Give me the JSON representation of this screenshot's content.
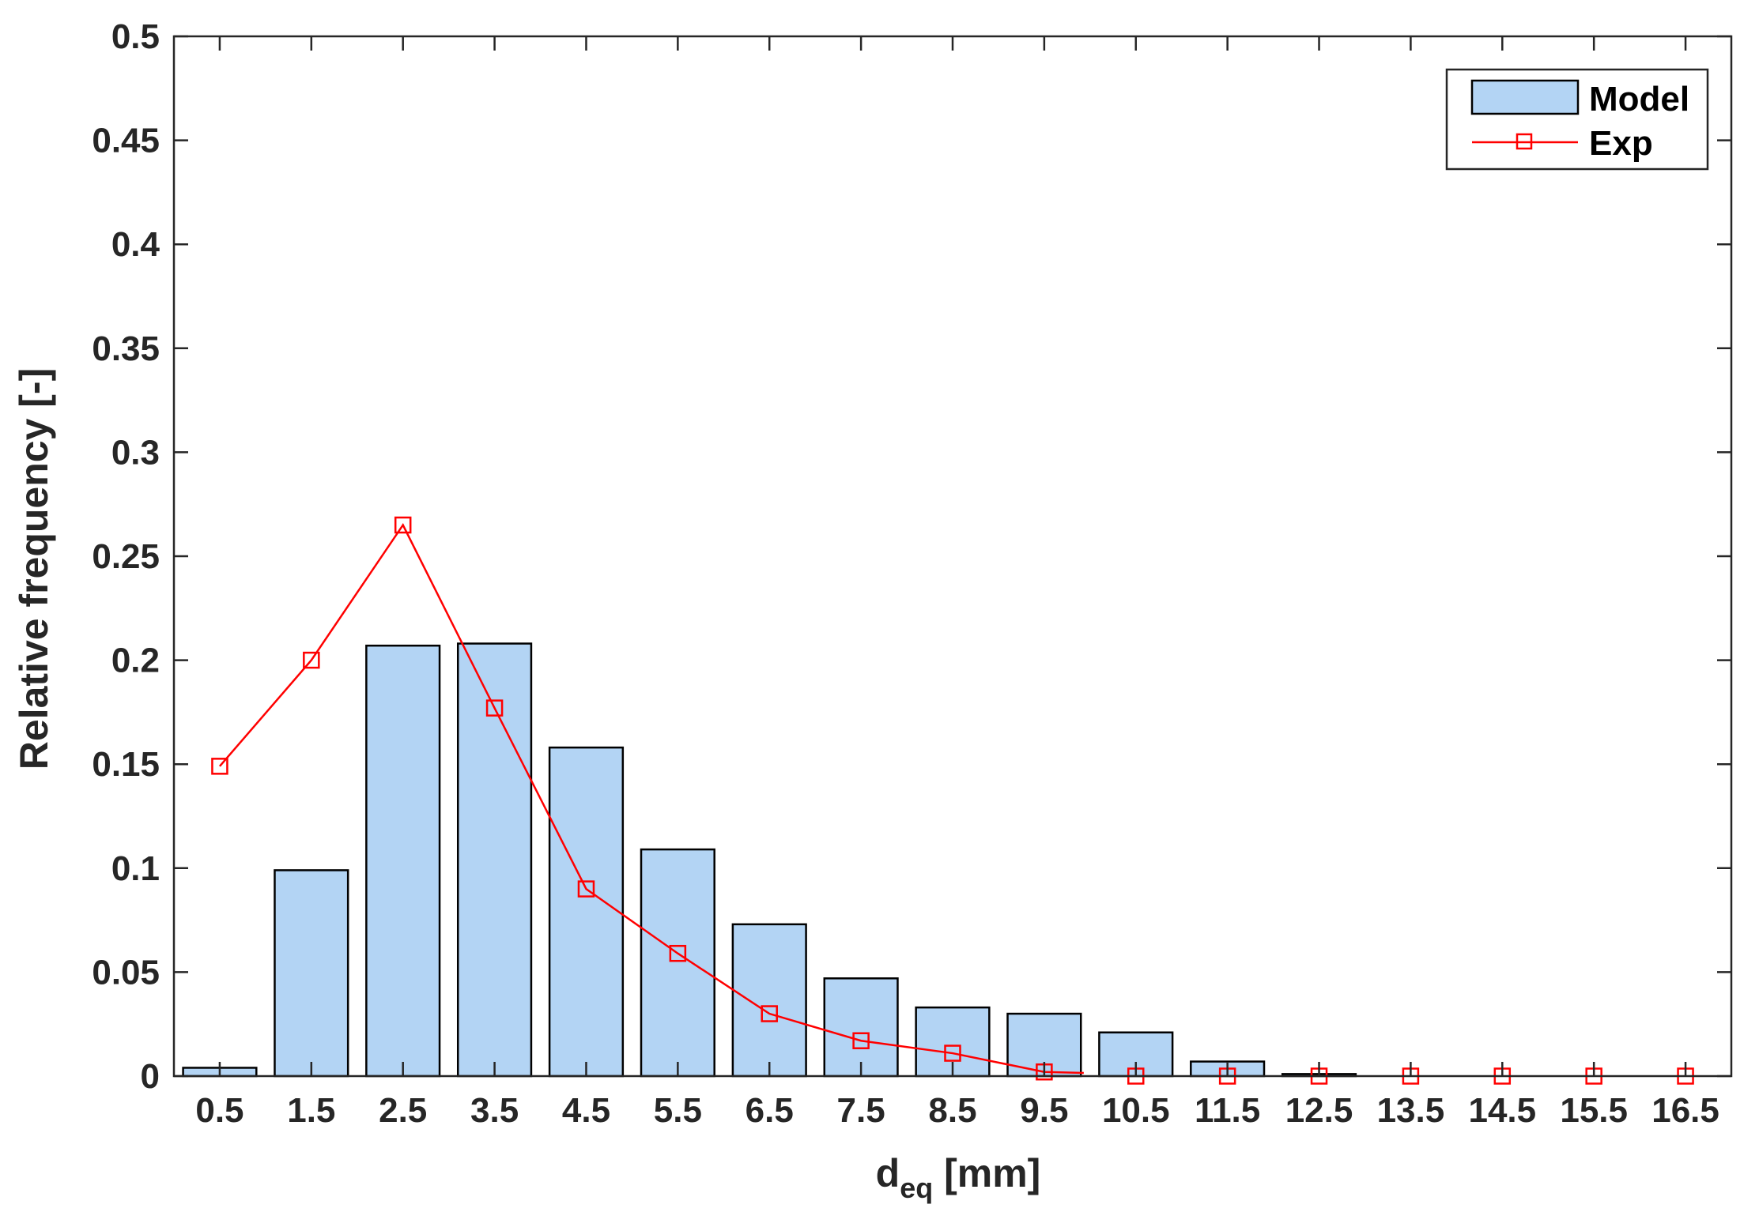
{
  "chart_data": {
    "type": "bar",
    "title": "",
    "xlabel": "d",
    "xlabel_sub": "eq",
    "xlabel_unit": " [mm]",
    "ylabel": "Relative frequency [-]",
    "ylim": [
      0,
      0.5
    ],
    "yticks": [
      "0",
      "0.05",
      "0.1",
      "0.15",
      "0.2",
      "0.25",
      "0.3",
      "0.35",
      "0.4",
      "0.45",
      "0.5"
    ],
    "categories": [
      "0.5",
      "1.5",
      "2.5",
      "3.5",
      "4.5",
      "5.5",
      "6.5",
      "7.5",
      "8.5",
      "9.5",
      "10.5",
      "11.5",
      "12.5",
      "13.5",
      "14.5",
      "15.5",
      "16.5"
    ],
    "grid": false,
    "legend_position": "top-right",
    "series": [
      {
        "name": "Model",
        "kind": "bar",
        "color": "#b3d4f4",
        "values": [
          0.004,
          0.099,
          0.207,
          0.208,
          0.158,
          0.109,
          0.073,
          0.047,
          0.033,
          0.03,
          0.021,
          0.007,
          0.001,
          0,
          0,
          0,
          0
        ]
      },
      {
        "name": "Exp",
        "kind": "line",
        "color": "#ff0000",
        "marker": "square",
        "values": [
          0.149,
          0.2,
          0.265,
          0.177,
          0.09,
          0.059,
          0.03,
          0.017,
          0.011,
          0.002,
          0,
          0,
          0,
          0,
          0,
          0,
          0
        ]
      }
    ]
  }
}
